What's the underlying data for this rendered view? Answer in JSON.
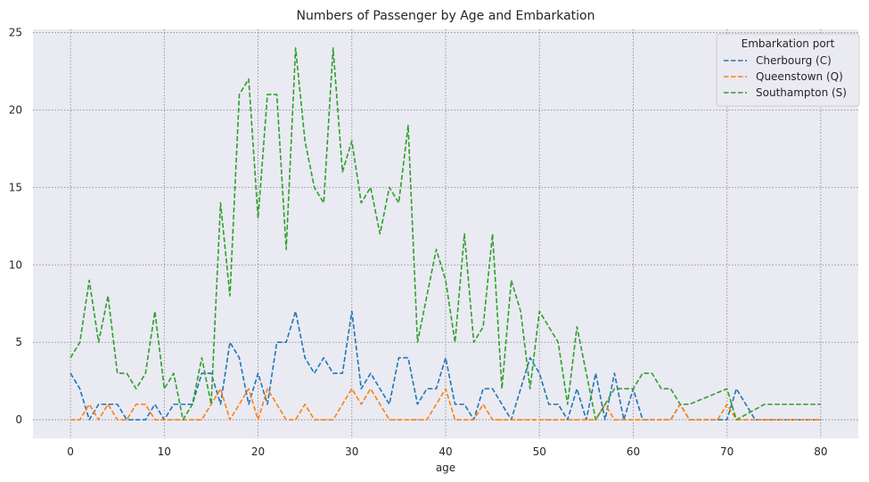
{
  "chart_data": {
    "type": "line",
    "title": "Numbers of Passenger by Age and Embarkation",
    "xlabel": "age",
    "ylabel": "",
    "xlim": [
      -4,
      84
    ],
    "ylim": [
      -1.2,
      25.2
    ],
    "x_ticks": [
      0,
      10,
      20,
      30,
      40,
      50,
      60,
      70,
      80
    ],
    "y_ticks": [
      0,
      5,
      10,
      15,
      20,
      25
    ],
    "grid": true,
    "legend": {
      "title": "Embarkation port",
      "placement": "upper-right"
    },
    "series": [
      {
        "name": "Cherbourg (C)",
        "color": "#1f77b4",
        "points": [
          [
            0,
            3
          ],
          [
            1,
            2
          ],
          [
            2,
            0
          ],
          [
            3,
            1
          ],
          [
            4,
            1
          ],
          [
            5,
            1
          ],
          [
            6,
            0
          ],
          [
            7,
            0
          ],
          [
            8,
            0
          ],
          [
            9,
            1
          ],
          [
            10,
            0
          ],
          [
            11,
            1
          ],
          [
            12,
            1
          ],
          [
            13,
            1
          ],
          [
            14,
            3
          ],
          [
            15,
            3
          ],
          [
            16,
            1
          ],
          [
            17,
            5
          ],
          [
            18,
            4
          ],
          [
            19,
            1
          ],
          [
            20,
            3
          ],
          [
            21,
            1
          ],
          [
            22,
            5
          ],
          [
            23,
            5
          ],
          [
            24,
            7
          ],
          [
            25,
            4
          ],
          [
            26,
            3
          ],
          [
            27,
            4
          ],
          [
            28,
            3
          ],
          [
            29,
            3
          ],
          [
            30,
            7
          ],
          [
            31,
            2
          ],
          [
            32,
            3
          ],
          [
            33,
            2
          ],
          [
            34,
            1
          ],
          [
            35,
            4
          ],
          [
            36,
            4
          ],
          [
            37,
            1
          ],
          [
            38,
            2
          ],
          [
            39,
            2
          ],
          [
            40,
            4
          ],
          [
            41,
            1
          ],
          [
            42,
            1
          ],
          [
            43,
            0
          ],
          [
            44,
            2
          ],
          [
            45,
            2
          ],
          [
            46,
            1
          ],
          [
            47,
            0
          ],
          [
            48,
            2
          ],
          [
            49,
            4
          ],
          [
            50,
            3
          ],
          [
            51,
            1
          ],
          [
            52,
            1
          ],
          [
            53,
            0
          ],
          [
            54,
            2
          ],
          [
            55,
            0
          ],
          [
            56,
            3
          ],
          [
            57,
            0
          ],
          [
            58,
            3
          ],
          [
            59,
            0
          ],
          [
            60,
            2
          ],
          [
            61,
            0
          ],
          [
            62,
            0
          ],
          [
            63,
            0
          ],
          [
            64,
            0
          ],
          [
            65,
            1
          ],
          [
            66,
            0
          ],
          [
            67,
            0
          ],
          [
            68,
            0
          ],
          [
            69,
            0
          ],
          [
            70,
            0
          ],
          [
            71,
            2
          ],
          [
            72,
            1
          ],
          [
            73,
            0
          ],
          [
            74,
            0
          ],
          [
            75,
            0
          ],
          [
            76,
            0
          ],
          [
            77,
            0
          ],
          [
            78,
            0
          ],
          [
            79,
            0
          ],
          [
            80,
            0
          ]
        ]
      },
      {
        "name": "Queenstown (Q)",
        "color": "#ff7f0e",
        "points": [
          [
            0,
            0
          ],
          [
            1,
            0
          ],
          [
            2,
            1
          ],
          [
            3,
            0
          ],
          [
            4,
            1
          ],
          [
            5,
            0
          ],
          [
            6,
            0
          ],
          [
            7,
            1
          ],
          [
            8,
            1
          ],
          [
            9,
            0
          ],
          [
            10,
            0
          ],
          [
            11,
            0
          ],
          [
            12,
            0
          ],
          [
            13,
            0
          ],
          [
            14,
            0
          ],
          [
            15,
            1
          ],
          [
            16,
            2
          ],
          [
            17,
            0
          ],
          [
            18,
            1
          ],
          [
            19,
            2
          ],
          [
            20,
            0
          ],
          [
            21,
            2
          ],
          [
            22,
            1
          ],
          [
            23,
            0
          ],
          [
            24,
            0
          ],
          [
            25,
            1
          ],
          [
            26,
            0
          ],
          [
            27,
            0
          ],
          [
            28,
            0
          ],
          [
            29,
            1
          ],
          [
            30,
            2
          ],
          [
            31,
            1
          ],
          [
            32,
            2
          ],
          [
            33,
            1
          ],
          [
            34,
            0
          ],
          [
            35,
            0
          ],
          [
            36,
            0
          ],
          [
            37,
            0
          ],
          [
            38,
            0
          ],
          [
            39,
            1
          ],
          [
            40,
            2
          ],
          [
            41,
            0
          ],
          [
            42,
            0
          ],
          [
            43,
            0
          ],
          [
            44,
            1
          ],
          [
            45,
            0
          ],
          [
            46,
            0
          ],
          [
            47,
            0
          ],
          [
            48,
            0
          ],
          [
            49,
            0
          ],
          [
            50,
            0
          ],
          [
            51,
            0
          ],
          [
            52,
            0
          ],
          [
            53,
            0
          ],
          [
            54,
            0
          ],
          [
            55,
            0
          ],
          [
            56,
            0
          ],
          [
            57,
            1
          ],
          [
            58,
            0
          ],
          [
            59,
            0
          ],
          [
            60,
            0
          ],
          [
            61,
            0
          ],
          [
            62,
            0
          ],
          [
            63,
            0
          ],
          [
            64,
            0
          ],
          [
            65,
            1
          ],
          [
            66,
            0
          ],
          [
            67,
            0
          ],
          [
            68,
            0
          ],
          [
            69,
            0
          ],
          [
            70,
            1
          ],
          [
            71,
            0
          ],
          [
            72,
            0
          ],
          [
            73,
            0
          ],
          [
            74,
            0
          ],
          [
            75,
            0
          ],
          [
            76,
            0
          ],
          [
            77,
            0
          ],
          [
            78,
            0
          ],
          [
            79,
            0
          ],
          [
            80,
            0
          ]
        ]
      },
      {
        "name": "Southampton (S)",
        "color": "#2ca02c",
        "points": [
          [
            0,
            4
          ],
          [
            1,
            5
          ],
          [
            2,
            9
          ],
          [
            3,
            5
          ],
          [
            4,
            8
          ],
          [
            5,
            3
          ],
          [
            6,
            3
          ],
          [
            7,
            2
          ],
          [
            8,
            3
          ],
          [
            9,
            7
          ],
          [
            10,
            2
          ],
          [
            11,
            3
          ],
          [
            12,
            0
          ],
          [
            13,
            1
          ],
          [
            14,
            4
          ],
          [
            15,
            1
          ],
          [
            16,
            14
          ],
          [
            17,
            8
          ],
          [
            18,
            21
          ],
          [
            19,
            22
          ],
          [
            20,
            13
          ],
          [
            21,
            21
          ],
          [
            22,
            21
          ],
          [
            23,
            11
          ],
          [
            24,
            24
          ],
          [
            25,
            18
          ],
          [
            26,
            15
          ],
          [
            27,
            14
          ],
          [
            28,
            24
          ],
          [
            29,
            16
          ],
          [
            30,
            18
          ],
          [
            31,
            14
          ],
          [
            32,
            15
          ],
          [
            33,
            12
          ],
          [
            34,
            15
          ],
          [
            35,
            14
          ],
          [
            36,
            19
          ],
          [
            37,
            5
          ],
          [
            38,
            8
          ],
          [
            39,
            11
          ],
          [
            40,
            9
          ],
          [
            41,
            5
          ],
          [
            42,
            12
          ],
          [
            43,
            5
          ],
          [
            44,
            6
          ],
          [
            45,
            12
          ],
          [
            46,
            2
          ],
          [
            47,
            9
          ],
          [
            48,
            7
          ],
          [
            49,
            2
          ],
          [
            50,
            7
          ],
          [
            51,
            6
          ],
          [
            52,
            5
          ],
          [
            53,
            1
          ],
          [
            54,
            6
          ],
          [
            55,
            3
          ],
          [
            56,
            0
          ],
          [
            57,
            1
          ],
          [
            58,
            2
          ],
          [
            59,
            2
          ],
          [
            60,
            2
          ],
          [
            61,
            3
          ],
          [
            62,
            3
          ],
          [
            63,
            2
          ],
          [
            64,
            2
          ],
          [
            65,
            1
          ],
          [
            66,
            1
          ],
          [
            70,
            2
          ],
          [
            71,
            0
          ],
          [
            74,
            1
          ],
          [
            80,
            1
          ]
        ]
      }
    ]
  }
}
